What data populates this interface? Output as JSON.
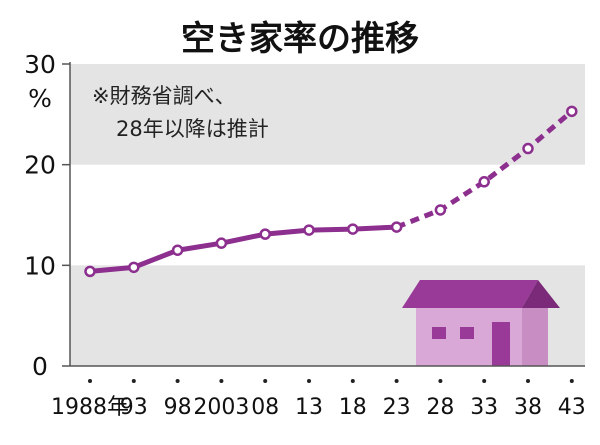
{
  "chart_data": {
    "type": "line",
    "title": "空き家率の推移",
    "ylabel": "%",
    "annotation": [
      "※財務省調べ、",
      "28年以降は推計"
    ],
    "categories": [
      "1988年",
      "93",
      "98",
      "2003",
      "08",
      "13",
      "18",
      "23",
      "28",
      "33",
      "38",
      "43"
    ],
    "values": [
      9.4,
      9.8,
      11.5,
      12.2,
      13.1,
      13.5,
      13.6,
      13.8,
      15.5,
      18.3,
      21.6,
      25.3
    ],
    "estimated_from_index": 7,
    "ylim": [
      0,
      30
    ],
    "yticks": [
      0,
      10,
      20,
      30
    ],
    "grid": "alternating horizontal bands",
    "colors": {
      "line": "#8c2f8e",
      "band": "#e4e4e4",
      "roof": "#9a3a98",
      "roof_side": "#7a2a78",
      "wall": "#d9a8d6",
      "wall_side": "#c88ec4",
      "window": "#9a3a98"
    },
    "icon": "house-icon"
  }
}
